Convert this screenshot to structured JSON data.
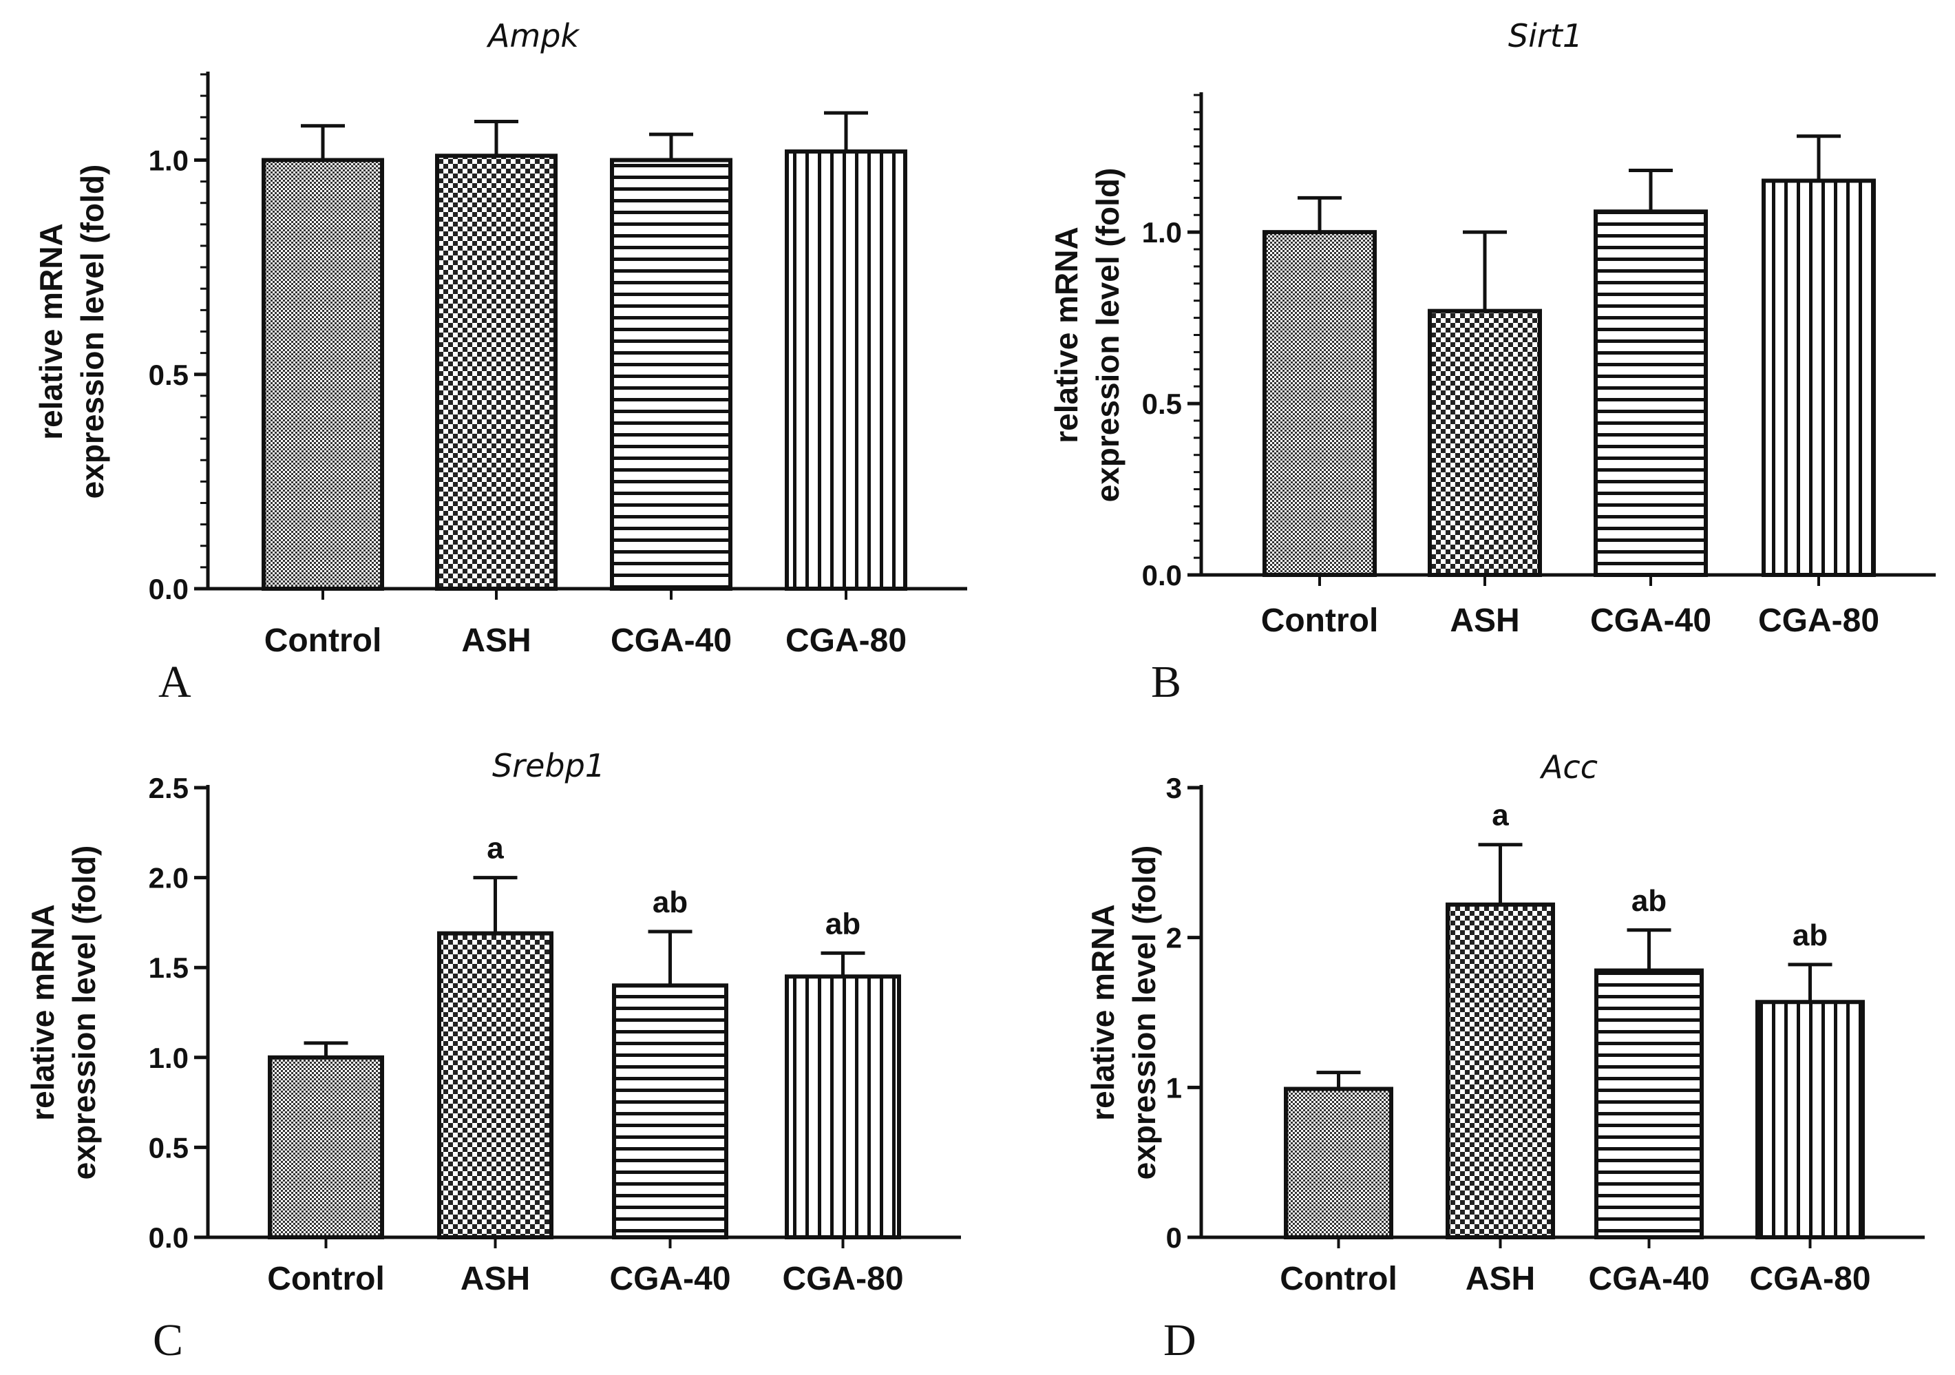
{
  "chart_data": [
    {
      "type": "bar",
      "panel": "A",
      "title": "Ampk",
      "ylabel": [
        "relative mRNA",
        "expression level (fold)"
      ],
      "xlabel": "",
      "categories": [
        "Control",
        "ASH",
        "CGA-40",
        "CGA-80"
      ],
      "values": [
        1.0,
        1.01,
        1.0,
        1.02
      ],
      "errors": [
        0.08,
        0.08,
        0.06,
        0.09
      ],
      "annotations": [
        "",
        "",
        "",
        ""
      ],
      "patterns": [
        "dense",
        "checker",
        "hstripe",
        "vstripe"
      ],
      "ylim": [
        0,
        1.2
      ],
      "yticks": [
        0.0,
        0.5,
        1.0
      ],
      "ytick_labels": [
        "0.0",
        "0.5",
        "1.0"
      ],
      "grid": false
    },
    {
      "type": "bar",
      "panel": "B",
      "title": "Sirt1",
      "ylabel": [
        "relative mRNA",
        "expression level (fold)"
      ],
      "xlabel": "",
      "categories": [
        "Control",
        "ASH",
        "CGA-40",
        "CGA-80"
      ],
      "values": [
        1.0,
        0.77,
        1.06,
        1.15
      ],
      "errors": [
        0.1,
        0.23,
        0.12,
        0.13
      ],
      "annotations": [
        "",
        "",
        "",
        ""
      ],
      "patterns": [
        "dense",
        "checker",
        "hstripe",
        "vstripe"
      ],
      "ylim": [
        0,
        1.4
      ],
      "yticks": [
        0.0,
        0.5,
        1.0
      ],
      "ytick_labels": [
        "0.0",
        "0.5",
        "1.0"
      ],
      "grid": false
    },
    {
      "type": "bar",
      "panel": "C",
      "title": "Srebp1",
      "ylabel": [
        "relative mRNA",
        "expression level (fold)"
      ],
      "xlabel": "",
      "categories": [
        "Control",
        "ASH",
        "CGA-40",
        "CGA-80"
      ],
      "values": [
        1.0,
        1.69,
        1.4,
        1.45
      ],
      "errors": [
        0.08,
        0.31,
        0.3,
        0.13
      ],
      "annotations": [
        "",
        "a",
        "ab",
        "ab"
      ],
      "patterns": [
        "dense",
        "checker",
        "hstripe",
        "vstripe"
      ],
      "ylim": [
        0,
        2.5
      ],
      "yticks": [
        0.0,
        0.5,
        1.0,
        1.5,
        2.0,
        2.5
      ],
      "ytick_labels": [
        "0.0",
        "0.5",
        "1.0",
        "1.5",
        "2.0",
        "2.5"
      ],
      "grid": false
    },
    {
      "type": "bar",
      "panel": "D",
      "title": "Acc",
      "ylabel": [
        "relative mRNA",
        "expression level (fold)"
      ],
      "xlabel": "",
      "categories": [
        "Control",
        "ASH",
        "CGA-40",
        "CGA-80"
      ],
      "values": [
        0.99,
        2.22,
        1.78,
        1.57
      ],
      "errors": [
        0.11,
        0.4,
        0.27,
        0.25
      ],
      "annotations": [
        "",
        "a",
        "ab",
        "ab"
      ],
      "patterns": [
        "dense",
        "checker",
        "hstripe",
        "vstripe"
      ],
      "ylim": [
        0,
        3
      ],
      "yticks": [
        0,
        1,
        2,
        3
      ],
      "ytick_labels": [
        "0",
        "1",
        "2",
        "3"
      ],
      "grid": false
    }
  ]
}
